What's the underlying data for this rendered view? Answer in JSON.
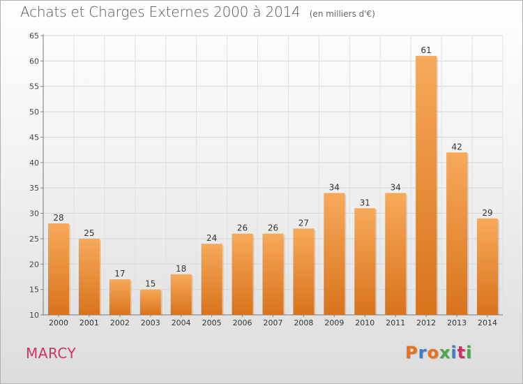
{
  "header": {
    "title": "Achats et Charges Externes 2000 à 2014",
    "subtitle": "(en milliers d'€)"
  },
  "footer": {
    "city": "MARCY",
    "logo_text": "Proxiti",
    "logo_colors": [
      "#e8731a",
      "#3a7fc4",
      "#e8731a",
      "#4aa84a",
      "#3a7fc4",
      "#cc3366",
      "#4aa84a"
    ]
  },
  "chart_data": {
    "type": "bar",
    "categories": [
      "2000",
      "2001",
      "2002",
      "2003",
      "2004",
      "2005",
      "2006",
      "2007",
      "2008",
      "2009",
      "2010",
      "2011",
      "2012",
      "2013",
      "2014"
    ],
    "values": [
      28,
      25,
      17,
      15,
      18,
      24,
      26,
      26,
      27,
      34,
      31,
      34,
      61,
      42,
      29
    ],
    "ylim": [
      10,
      65
    ],
    "yticks": [
      10,
      15,
      20,
      25,
      30,
      35,
      40,
      45,
      50,
      55,
      60,
      65
    ],
    "grid": true,
    "data_labels": true,
    "bar_color_top": "#f7a95a",
    "bar_color_bottom": "#d9731c"
  }
}
